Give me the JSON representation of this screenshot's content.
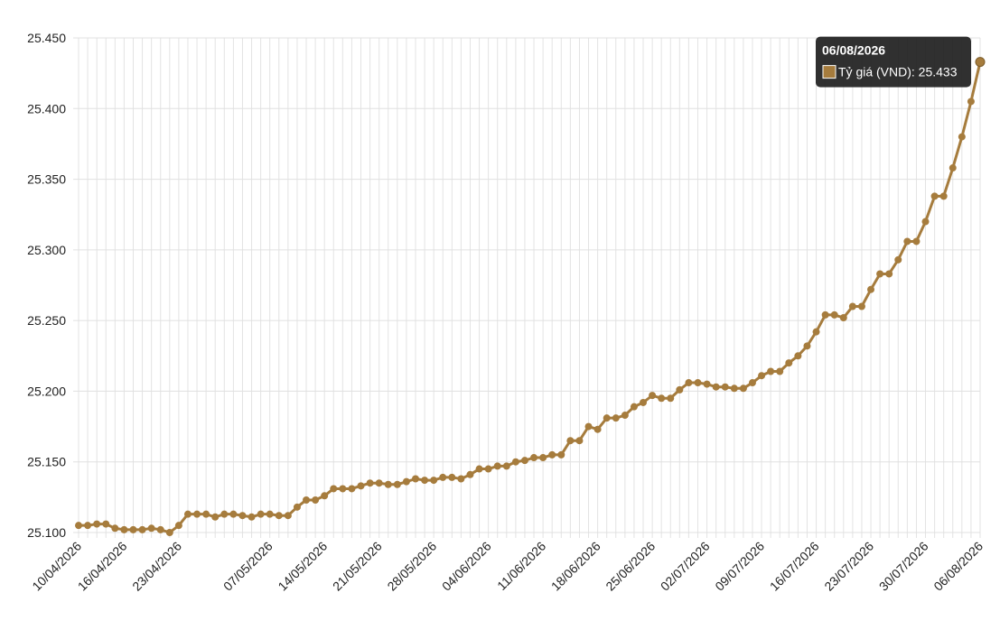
{
  "chart_data": {
    "type": "line",
    "categories": [
      "10/04/2026",
      null,
      null,
      null,
      null,
      "16/04/2026",
      null,
      null,
      null,
      null,
      null,
      "23/04/2026",
      null,
      null,
      null,
      null,
      null,
      null,
      null,
      null,
      null,
      "07/05/2026",
      null,
      null,
      null,
      null,
      null,
      "14/05/2026",
      null,
      null,
      null,
      null,
      null,
      "21/05/2026",
      null,
      null,
      null,
      null,
      null,
      "28/05/2026",
      null,
      null,
      null,
      null,
      null,
      "04/06/2026",
      null,
      null,
      null,
      null,
      null,
      "11/06/2026",
      null,
      null,
      null,
      null,
      null,
      "18/06/2026",
      null,
      null,
      null,
      null,
      null,
      "25/06/2026",
      null,
      null,
      null,
      null,
      null,
      "02/07/2026",
      null,
      null,
      null,
      null,
      null,
      "09/07/2026",
      null,
      null,
      null,
      null,
      null,
      "16/07/2026",
      null,
      null,
      null,
      null,
      null,
      "23/07/2026",
      null,
      null,
      null,
      null,
      null,
      "30/07/2026",
      null,
      null,
      null,
      null,
      null,
      "06/08/2026"
    ],
    "series": [
      {
        "name": "Tỷ giá (VND)",
        "color": "#a67c3d",
        "values": [
          25105,
          25105,
          25106,
          25106,
          25103,
          25102,
          25102,
          25102,
          25103,
          25102,
          25100,
          25105,
          25113,
          25113,
          25113,
          25111,
          25113,
          25113,
          25112,
          25111,
          25113,
          25113,
          25112,
          25112,
          25118,
          25123,
          25123,
          25126,
          25131,
          25131,
          25131,
          25133,
          25135,
          25135,
          25134,
          25134,
          25136,
          25138,
          25137,
          25137,
          25139,
          25139,
          25138,
          25141,
          25145,
          25145,
          25147,
          25147,
          25150,
          25151,
          25153,
          25153,
          25155,
          25155,
          25165,
          25165,
          25175,
          25173,
          25181,
          25181,
          25183,
          25189,
          25192,
          25197,
          25195,
          25195,
          25201,
          25206,
          25206,
          25205,
          25203,
          25203,
          25202,
          25202,
          25206,
          25211,
          25214,
          25214,
          25220,
          25225,
          25232,
          25242,
          25254,
          25254,
          25252,
          25260,
          25260,
          25272,
          25283,
          25283,
          25293,
          25306,
          25306,
          25320,
          25338,
          25338,
          25358,
          25380,
          25405,
          25433
        ]
      }
    ],
    "ylim": [
      25100,
      25450
    ],
    "yticks": [
      {
        "value": 25100,
        "label": "25.100"
      },
      {
        "value": 25150,
        "label": "25.150"
      },
      {
        "value": 25200,
        "label": "25.200"
      },
      {
        "value": 25250,
        "label": "25.250"
      },
      {
        "value": 25300,
        "label": "25.300"
      },
      {
        "value": 25350,
        "label": "25.350"
      },
      {
        "value": 25400,
        "label": "25.400"
      },
      {
        "value": 25450,
        "label": "25.450"
      }
    ],
    "grid": true,
    "tooltip": {
      "title": "06/08/2026",
      "text": "Tỷ giá (VND): 25.433"
    }
  }
}
